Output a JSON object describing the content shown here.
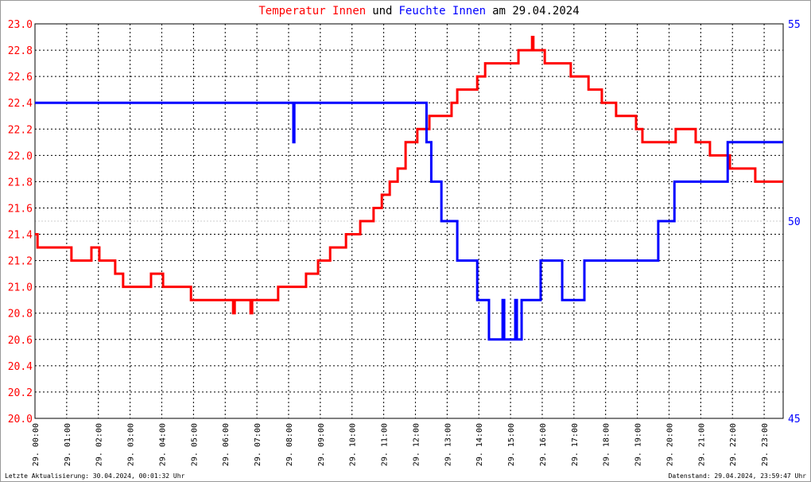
{
  "chart_data": {
    "type": "line",
    "title_parts": [
      {
        "text": "Temperatur Innen",
        "color": "#ff0000"
      },
      {
        "text": "und",
        "color": "#000000"
      },
      {
        "text": "Feuchte Innen",
        "color": "#0000ff"
      },
      {
        "text": "am 29.04.2024",
        "color": "#000000"
      }
    ],
    "xlim": [
      0,
      23.6
    ],
    "xticks": [
      {
        "value": 0,
        "label": "29. 00:00"
      },
      {
        "value": 1,
        "label": "29. 01:00"
      },
      {
        "value": 2,
        "label": "29. 02:00"
      },
      {
        "value": 3,
        "label": "29. 03:00"
      },
      {
        "value": 4,
        "label": "29. 04:00"
      },
      {
        "value": 5,
        "label": "29. 05:00"
      },
      {
        "value": 6,
        "label": "29. 06:00"
      },
      {
        "value": 7,
        "label": "29. 07:00"
      },
      {
        "value": 8,
        "label": "29. 08:00"
      },
      {
        "value": 9,
        "label": "29. 09:00"
      },
      {
        "value": 10,
        "label": "29. 10:00"
      },
      {
        "value": 11,
        "label": "29. 11:00"
      },
      {
        "value": 12,
        "label": "29. 12:00"
      },
      {
        "value": 13,
        "label": "29. 13:00"
      },
      {
        "value": 14,
        "label": "29. 14:00"
      },
      {
        "value": 15,
        "label": "29. 15:00"
      },
      {
        "value": 16,
        "label": "29. 16:00"
      },
      {
        "value": 17,
        "label": "29. 17:00"
      },
      {
        "value": 18,
        "label": "29. 18:00"
      },
      {
        "value": 19,
        "label": "29. 19:00"
      },
      {
        "value": 20,
        "label": "29. 20:00"
      },
      {
        "value": 21,
        "label": "29. 21:00"
      },
      {
        "value": 22,
        "label": "29. 22:00"
      },
      {
        "value": 23,
        "label": "29. 23:00"
      }
    ],
    "ylim": [
      20,
      23
    ],
    "yticks": [
      {
        "value": 20,
        "label": "20.0"
      },
      20.2,
      20.4,
      20.6,
      20.8,
      {
        "value": 21,
        "label": "21.0"
      },
      21.2,
      21.4,
      21.6,
      21.8,
      {
        "value": 22,
        "label": "22.0"
      },
      22.2,
      22.4,
      22.6,
      22.8,
      {
        "value": 23,
        "label": "23.0"
      }
    ],
    "ytick_color": "#ff0000",
    "y2lim": [
      45,
      55
    ],
    "y2ticks": [
      45,
      50,
      55
    ],
    "y2tick_color": "#0000ff",
    "grid": true,
    "series": [
      {
        "name": "Temperatur Innen",
        "color": "#ff0000",
        "x": [
          0,
          0.08,
          0.08,
          1.15,
          1.15,
          1.78,
          1.78,
          2.03,
          2.03,
          2.53,
          2.53,
          2.78,
          2.78,
          3.66,
          3.66,
          4.04,
          4.04,
          4.92,
          4.92,
          6.25,
          6.25,
          6.3,
          6.3,
          6.8,
          6.8,
          6.85,
          6.85,
          7.67,
          7.67,
          8.55,
          8.55,
          8.93,
          8.93,
          9.31,
          9.31,
          9.81,
          9.81,
          10.26,
          10.26,
          10.68,
          10.68,
          10.94,
          10.94,
          11.19,
          11.19,
          11.44,
          11.44,
          11.69,
          11.69,
          12.06,
          12.06,
          12.44,
          12.44,
          13.14,
          13.14,
          13.32,
          13.32,
          13.95,
          13.95,
          14.2,
          14.2,
          15.25,
          15.25,
          15.68,
          15.68,
          15.72,
          15.72,
          16.08,
          16.08,
          16.9,
          16.9,
          17.46,
          17.46,
          17.88,
          17.88,
          18.33,
          18.33,
          18.96,
          18.96,
          19.16,
          19.16,
          20.21,
          20.21,
          20.84,
          20.84,
          21.29,
          21.29,
          21.92,
          21.92,
          22.72,
          22.72,
          23.6
        ],
        "values": [
          21.4,
          21.4,
          21.3,
          21.3,
          21.2,
          21.2,
          21.3,
          21.3,
          21.2,
          21.2,
          21.1,
          21.1,
          21.0,
          21.0,
          21.1,
          21.1,
          21.0,
          21.0,
          20.9,
          20.9,
          20.8,
          20.8,
          20.9,
          20.9,
          20.8,
          20.8,
          20.9,
          20.9,
          21.0,
          21.0,
          21.1,
          21.1,
          21.2,
          21.2,
          21.3,
          21.3,
          21.4,
          21.4,
          21.5,
          21.5,
          21.6,
          21.6,
          21.7,
          21.7,
          21.8,
          21.8,
          21.9,
          21.9,
          22.1,
          22.1,
          22.2,
          22.2,
          22.3,
          22.3,
          22.4,
          22.4,
          22.5,
          22.5,
          22.6,
          22.6,
          22.7,
          22.7,
          22.8,
          22.8,
          22.9,
          22.9,
          22.8,
          22.8,
          22.7,
          22.7,
          22.6,
          22.6,
          22.5,
          22.5,
          22.4,
          22.4,
          22.3,
          22.3,
          22.2,
          22.2,
          22.1,
          22.1,
          22.2,
          22.2,
          22.1,
          22.1,
          22.0,
          22.0,
          21.9,
          21.9,
          21.8,
          21.8
        ]
      },
      {
        "name": "Feuchte Innen",
        "color": "#0000ff",
        "axis": "y2",
        "x": [
          0,
          8.15,
          8.15,
          8.18,
          8.18,
          12.35,
          12.35,
          12.5,
          12.5,
          12.82,
          12.82,
          13.32,
          13.32,
          13.95,
          13.95,
          14.32,
          14.32,
          14.75,
          14.75,
          14.8,
          14.8,
          15.15,
          15.15,
          15.2,
          15.2,
          15.35,
          15.35,
          15.95,
          15.95,
          16.63,
          16.63,
          17.33,
          17.33,
          19.66,
          19.66,
          20.17,
          20.17,
          21.85,
          21.85,
          23.6
        ],
        "values": [
          53,
          53,
          52,
          52,
          53,
          53,
          52,
          52,
          51,
          51,
          50,
          50,
          49,
          49,
          48,
          48,
          47,
          47,
          48,
          48,
          47,
          47,
          48,
          48,
          47,
          47,
          48,
          48,
          49,
          49,
          48,
          48,
          49,
          49,
          50,
          50,
          51,
          51,
          52,
          52
        ]
      }
    ],
    "footer_left": "Letzte Aktualisierung: 30.04.2024, 00:01:32 Uhr",
    "footer_right": "Datenstand: 29.04.2024, 23:59:47 Uhr"
  }
}
